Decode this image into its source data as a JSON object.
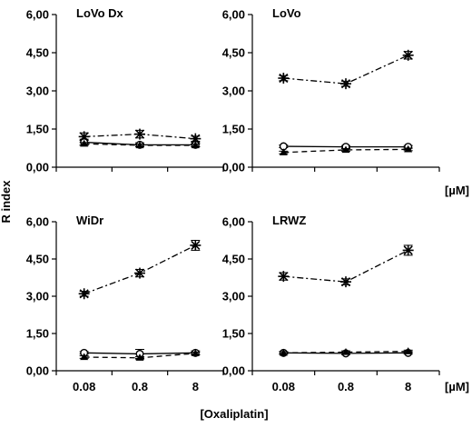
{
  "chart_data": [
    {
      "type": "line",
      "title": "LoVo Dx",
      "categories": [
        "0.08",
        "0.8",
        "8"
      ],
      "ylim": [
        0,
        6
      ],
      "yticks": [
        "0,00",
        "1,50",
        "3,00",
        "4,50",
        "6,00"
      ],
      "series": [
        {
          "marker": "star",
          "style": "dash-dot",
          "values": [
            1.2,
            1.3,
            1.12
          ],
          "errors": [
            0.15,
            0.15,
            0.1
          ]
        },
        {
          "marker": "circle",
          "style": "solid",
          "values": [
            0.98,
            0.88,
            0.88
          ],
          "errors": [
            0.12,
            0.08,
            0.08
          ]
        },
        {
          "marker": "triangle",
          "style": "dashed",
          "values": [
            0.92,
            0.86,
            0.86
          ],
          "errors": [
            0.05,
            0.05,
            0.05
          ]
        }
      ]
    },
    {
      "type": "line",
      "title": "LoVo",
      "categories": [
        "0.08",
        "0.8",
        "8"
      ],
      "ylim": [
        0,
        6
      ],
      "yticks": [
        "0,00",
        "1,50",
        "3,00",
        "4,50",
        "6,00"
      ],
      "series": [
        {
          "marker": "star",
          "style": "dash-dot",
          "values": [
            3.5,
            3.28,
            4.4
          ],
          "errors": [
            0.1,
            0.1,
            0.15
          ]
        },
        {
          "marker": "circle",
          "style": "solid",
          "values": [
            0.82,
            0.8,
            0.8
          ],
          "errors": [
            0.05,
            0.05,
            0.05
          ]
        },
        {
          "marker": "triangle",
          "style": "dashed",
          "values": [
            0.58,
            0.68,
            0.7
          ],
          "errors": [
            0.05,
            0.05,
            0.05
          ]
        }
      ]
    },
    {
      "type": "line",
      "title": "WiDr",
      "categories": [
        "0.08",
        "0.8",
        "8"
      ],
      "ylim": [
        0,
        6
      ],
      "yticks": [
        "0,00",
        "1,50",
        "3,00",
        "4,50",
        "6,00"
      ],
      "series": [
        {
          "marker": "star",
          "style": "dash-dot",
          "values": [
            3.1,
            3.93,
            5.05
          ],
          "errors": [
            0.1,
            0.15,
            0.2
          ]
        },
        {
          "marker": "circle",
          "style": "solid",
          "values": [
            0.72,
            0.68,
            0.72
          ],
          "errors": [
            0.05,
            0.18,
            0.08
          ]
        },
        {
          "marker": "triangle",
          "style": "dashed",
          "values": [
            0.55,
            0.52,
            0.7
          ],
          "errors": [
            0.05,
            0.05,
            0.05
          ]
        }
      ]
    },
    {
      "type": "line",
      "title": "LRWZ",
      "categories": [
        "0.08",
        "0.8",
        "8"
      ],
      "ylim": [
        0,
        6
      ],
      "yticks": [
        "0,00",
        "1,50",
        "3,00",
        "4,50",
        "6,00"
      ],
      "series": [
        {
          "marker": "star",
          "style": "dash-dot",
          "values": [
            3.8,
            3.58,
            4.85
          ],
          "errors": [
            0.15,
            0.12,
            0.2
          ]
        },
        {
          "marker": "circle",
          "style": "solid",
          "values": [
            0.72,
            0.7,
            0.72
          ],
          "errors": [
            0.05,
            0.05,
            0.05
          ]
        },
        {
          "marker": "triangle",
          "style": "dashed",
          "values": [
            0.72,
            0.75,
            0.78
          ],
          "errors": [
            0.05,
            0.05,
            0.05
          ]
        }
      ]
    }
  ],
  "ylabel": "R index",
  "xlabel": "[Oxaliplatin]",
  "unit_label": "[µM]"
}
